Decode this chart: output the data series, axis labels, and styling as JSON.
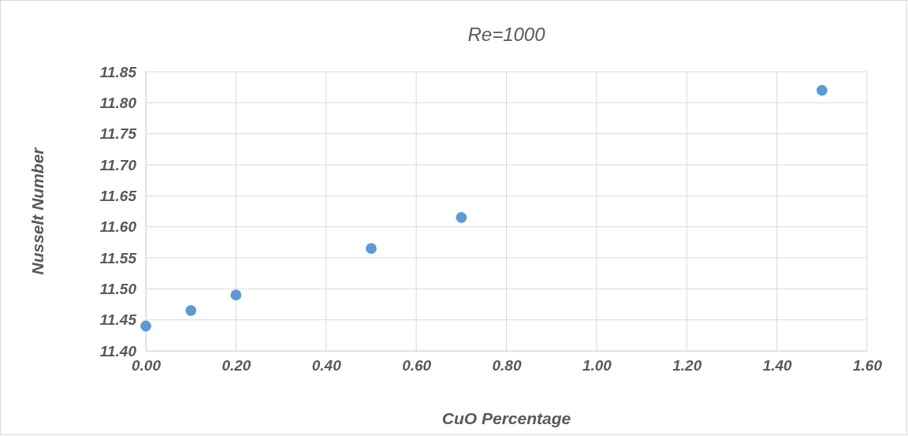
{
  "chart_data": {
    "type": "scatter",
    "title": "Re=1000",
    "xlabel": "CuO Percentage",
    "ylabel": "Nusselt Number",
    "x": [
      0,
      0.1,
      0.2,
      0.5,
      0.7,
      1.5
    ],
    "values": [
      11.44,
      11.465,
      11.49,
      11.565,
      11.615,
      11.82
    ],
    "color": "#5b9bd5",
    "marker": "circle",
    "grid": true,
    "xlim": [
      0,
      1.6
    ],
    "xticks": [
      {
        "value": 0,
        "label": "0.00"
      },
      {
        "value": 0.2,
        "label": "0.20"
      },
      {
        "value": 0.4,
        "label": "0.40"
      },
      {
        "value": 0.6,
        "label": "0.60"
      },
      {
        "value": 0.8,
        "label": "0.80"
      },
      {
        "value": 1,
        "label": "1.00"
      },
      {
        "value": 1.2,
        "label": "1.20"
      },
      {
        "value": 1.4,
        "label": "1.40"
      },
      {
        "value": 1.6,
        "label": "1.60"
      }
    ],
    "ylim": [
      11.4,
      11.85
    ],
    "yticks": [
      {
        "value": 11.4,
        "label": "11.40"
      },
      {
        "value": 11.45,
        "label": "11.45"
      },
      {
        "value": 11.5,
        "label": "11.50"
      },
      {
        "value": 11.55,
        "label": "11.55"
      },
      {
        "value": 11.6,
        "label": "11.60"
      },
      {
        "value": 11.65,
        "label": "11.65"
      },
      {
        "value": 11.7,
        "label": "11.70"
      },
      {
        "value": 11.75,
        "label": "11.75"
      },
      {
        "value": 11.8,
        "label": "11.80"
      },
      {
        "value": 11.85,
        "label": "11.85"
      }
    ]
  }
}
